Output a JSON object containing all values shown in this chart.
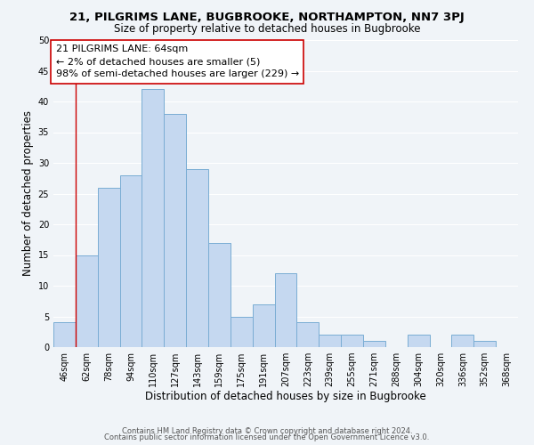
{
  "title_line1": "21, PILGRIMS LANE, BUGBROOKE, NORTHAMPTON, NN7 3PJ",
  "title_line2": "Size of property relative to detached houses in Bugbrooke",
  "xlabel": "Distribution of detached houses by size in Bugbrooke",
  "ylabel": "Number of detached properties",
  "bin_labels": [
    "46sqm",
    "62sqm",
    "78sqm",
    "94sqm",
    "110sqm",
    "127sqm",
    "143sqm",
    "159sqm",
    "175sqm",
    "191sqm",
    "207sqm",
    "223sqm",
    "239sqm",
    "255sqm",
    "271sqm",
    "288sqm",
    "304sqm",
    "320sqm",
    "336sqm",
    "352sqm",
    "368sqm"
  ],
  "bar_values": [
    4,
    15,
    26,
    28,
    42,
    38,
    29,
    17,
    5,
    7,
    12,
    4,
    2,
    2,
    1,
    0,
    2,
    0,
    2,
    1,
    0
  ],
  "bar_color": "#c5d8f0",
  "bar_edge_color": "#7aadd4",
  "vline_x_index": 1,
  "vline_color": "#cc0000",
  "annotation_line1": "21 PILGRIMS LANE: 64sqm",
  "annotation_line2": "← 2% of detached houses are smaller (5)",
  "annotation_line3": "98% of semi-detached houses are larger (229) →",
  "annotation_box_color": "#ffffff",
  "annotation_box_edge": "#cc0000",
  "ylim": [
    0,
    50
  ],
  "yticks": [
    0,
    5,
    10,
    15,
    20,
    25,
    30,
    35,
    40,
    45,
    50
  ],
  "footer_line1": "Contains HM Land Registry data © Crown copyright and database right 2024.",
  "footer_line2": "Contains public sector information licensed under the Open Government Licence v3.0.",
  "bg_color": "#f0f4f8",
  "plot_bg_color": "#f0f4f8",
  "grid_color": "#ffffff",
  "title_fontsize": 9.5,
  "subtitle_fontsize": 8.5,
  "axis_label_fontsize": 8.5,
  "tick_fontsize": 7,
  "annotation_fontsize": 8,
  "footer_fontsize": 6
}
